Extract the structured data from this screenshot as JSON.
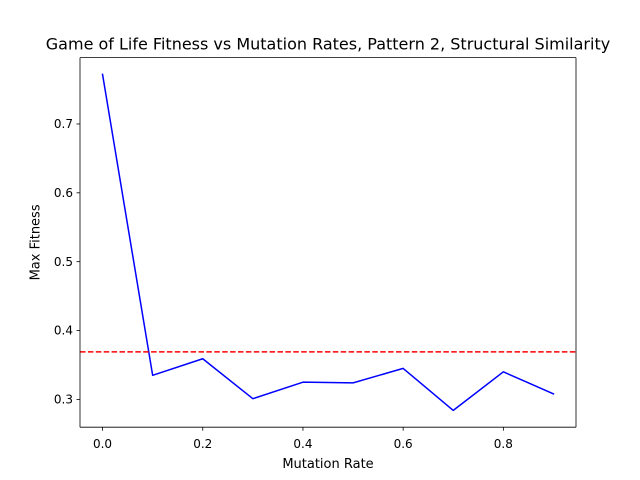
{
  "chart_data": {
    "type": "line",
    "title": "Game of Life Fitness vs Mutation Rates, Pattern 2, Structural Similarity",
    "xlabel": "Mutation Rate",
    "ylabel": "Max Fitness",
    "x": [
      0.0,
      0.1,
      0.2,
      0.3,
      0.4,
      0.5,
      0.6,
      0.7,
      0.8,
      0.9
    ],
    "series": [
      {
        "values": [
          0.772,
          0.335,
          0.359,
          0.301,
          0.325,
          0.324,
          0.345,
          0.284,
          0.34,
          0.308
        ],
        "color": "#0000ff"
      }
    ],
    "reference_line": {
      "y": 0.369,
      "color": "#ff0000",
      "style": "dashed"
    },
    "xlim": [
      -0.045,
      0.945
    ],
    "ylim": [
      0.2596,
      0.7964
    ],
    "xticks": [
      0.0,
      0.2,
      0.4,
      0.6,
      0.8
    ],
    "xtick_labels": [
      "0.0",
      "0.2",
      "0.4",
      "0.6",
      "0.8"
    ],
    "yticks": [
      0.3,
      0.4,
      0.5,
      0.6,
      0.7
    ],
    "ytick_labels": [
      "0.3",
      "0.4",
      "0.5",
      "0.6",
      "0.7"
    ],
    "grid": false,
    "legend": "none"
  }
}
